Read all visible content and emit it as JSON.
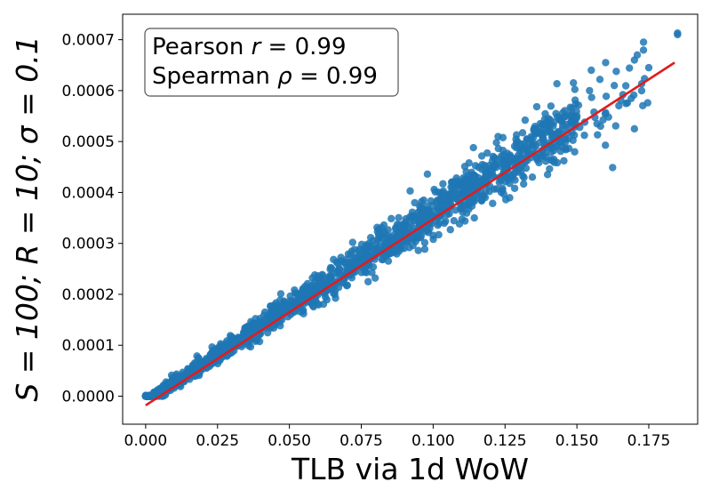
{
  "chart_data": {
    "type": "scatter",
    "xlabel": "TLB via 1d WoW",
    "ylabel": "S = 100; R = 10; σ = 0.1",
    "xlim": [
      -0.008,
      0.192
    ],
    "ylim": [
      -5.5e-05,
      0.00075
    ],
    "x_ticks": [
      "0.000",
      "0.025",
      "0.050",
      "0.075",
      "0.100",
      "0.125",
      "0.150",
      "0.175"
    ],
    "x_tick_values": [
      0,
      0.025,
      0.05,
      0.075,
      0.1,
      0.125,
      0.15,
      0.175
    ],
    "y_ticks": [
      "0.0000",
      "0.0001",
      "0.0002",
      "0.0003",
      "0.0004",
      "0.0005",
      "0.0006",
      "0.0007"
    ],
    "y_tick_values": [
      0,
      0.0001,
      0.0002,
      0.0003,
      0.0004,
      0.0005,
      0.0006,
      0.0007
    ],
    "annotation": {
      "line1_prefix": "Pearson ",
      "line1_symbol": "r",
      "line1_suffix": " = 0.99",
      "line2_prefix": "Spearman ",
      "line2_symbol": "ρ",
      "line2_suffix": " = 0.99"
    },
    "fit_line": {
      "x": [
        0.0,
        0.184
      ],
      "y": [
        -1.8e-05,
        0.000655
      ],
      "color": "#e41a1c"
    },
    "scatter_color": "#1f77b4",
    "representative_points": [
      {
        "x": 0.0,
        "y": 0.0
      },
      {
        "x": 0.01,
        "y": 2e-05
      },
      {
        "x": 0.025,
        "y": 8e-05
      },
      {
        "x": 0.05,
        "y": 0.00017
      },
      {
        "x": 0.075,
        "y": 0.00026
      },
      {
        "x": 0.1,
        "y": 0.00035
      },
      {
        "x": 0.125,
        "y": 0.00045
      },
      {
        "x": 0.15,
        "y": 0.00055
      },
      {
        "x": 0.17,
        "y": 0.00066
      },
      {
        "x": 0.185,
        "y": 0.00071
      }
    ],
    "outliers": [
      {
        "x": 0.185,
        "y": 0.000713
      },
      {
        "x": 0.171,
        "y": 0.00067
      },
      {
        "x": 0.175,
        "y": 0.000645
      },
      {
        "x": 0.16,
        "y": 0.000655
      },
      {
        "x": 0.17,
        "y": 0.000525
      },
      {
        "x": 0.155,
        "y": 0.00064
      },
      {
        "x": 0.158,
        "y": 0.000622
      },
      {
        "x": 0.163,
        "y": 0.00061
      },
      {
        "x": 0.166,
        "y": 0.000592
      },
      {
        "x": 0.161,
        "y": 0.000548
      },
      {
        "x": 0.157,
        "y": 0.000535
      },
      {
        "x": 0.151,
        "y": 0.000528
      },
      {
        "x": 0.149,
        "y": 0.000548
      },
      {
        "x": 0.146,
        "y": 0.000505
      },
      {
        "x": 0.139,
        "y": 0.000478
      },
      {
        "x": 0.142,
        "y": 0.000465
      },
      {
        "x": 0.132,
        "y": 0.000473
      },
      {
        "x": 0.135,
        "y": 0.000522
      },
      {
        "x": 0.138,
        "y": 0.000533
      },
      {
        "x": 0.132,
        "y": 0.000542
      },
      {
        "x": 0.129,
        "y": 0.000513
      },
      {
        "x": 0.122,
        "y": 0.000498
      },
      {
        "x": 0.114,
        "y": 0.000488
      },
      {
        "x": 0.111,
        "y": 0.000451
      },
      {
        "x": 0.121,
        "y": 0.000448
      },
      {
        "x": 0.127,
        "y": 0.000432
      },
      {
        "x": 0.123,
        "y": 0.00042
      },
      {
        "x": 0.105,
        "y": 0.000381
      },
      {
        "x": 0.117,
        "y": 0.000386
      },
      {
        "x": 0.098,
        "y": 0.000436
      },
      {
        "x": 0.092,
        "y": 0.000403
      },
      {
        "x": 0.087,
        "y": 0.000328
      },
      {
        "x": 0.081,
        "y": 0.000318
      },
      {
        "x": 0.072,
        "y": 0.000302
      },
      {
        "x": 0.064,
        "y": 0.000212
      },
      {
        "x": 0.058,
        "y": 0.000232
      },
      {
        "x": 0.047,
        "y": 0.000201
      },
      {
        "x": 0.041,
        "y": 0.000143
      }
    ]
  }
}
